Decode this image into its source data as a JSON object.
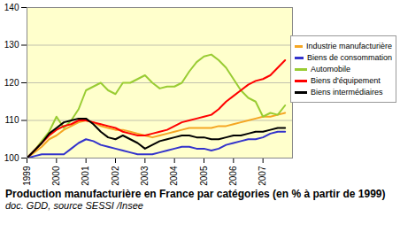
{
  "chart_data": {
    "type": "line",
    "title": "Production manufacturière en France par catégories (en % à partir de 1999)",
    "subtitle": "doc. GDD, source SESSI /Insee",
    "x": [
      1999,
      1999.25,
      1999.5,
      1999.75,
      2000,
      2000.25,
      2000.5,
      2000.75,
      2001,
      2001.25,
      2001.5,
      2001.75,
      2002,
      2002.25,
      2002.5,
      2002.75,
      2003,
      2003.25,
      2003.5,
      2003.75,
      2004,
      2004.25,
      2004.5,
      2004.75,
      2005,
      2005.25,
      2005.5,
      2005.75,
      2006,
      2006.25,
      2006.5,
      2006.75,
      2007,
      2007.25,
      2007.5,
      2007.75
    ],
    "series": [
      {
        "name": "Industrie manufacturière",
        "color": "#f5a623",
        "values": [
          100,
          101.5,
          103,
          105,
          106,
          107.5,
          108.5,
          109.5,
          110,
          109.5,
          108.5,
          108,
          107.5,
          107.5,
          107,
          106.5,
          106,
          105.5,
          106,
          106.5,
          107,
          107.5,
          108,
          108,
          108,
          108,
          108.5,
          108.5,
          109,
          109.5,
          110,
          110.5,
          111,
          111,
          111.5,
          112
        ]
      },
      {
        "name": "Biens de consommation",
        "color": "#3333cc",
        "values": [
          100,
          100.5,
          101,
          101,
          101,
          101,
          102.5,
          104,
          105,
          104.5,
          103.5,
          103,
          102.5,
          102,
          101.5,
          101,
          101,
          101,
          101.5,
          102,
          102.5,
          103,
          103,
          102.5,
          102.5,
          102,
          102.5,
          103.5,
          104,
          104.5,
          105,
          105,
          105.5,
          106.5,
          107,
          107
        ]
      },
      {
        "name": "Automobile",
        "color": "#99cc33",
        "values": [
          100,
          102,
          104.5,
          107,
          111,
          108,
          110,
          113,
          118,
          119,
          120,
          118,
          117,
          120,
          120,
          121,
          122,
          120,
          118.5,
          119,
          119,
          120,
          123,
          125.5,
          127,
          127.5,
          126,
          124,
          121,
          118,
          116,
          115,
          111,
          112,
          111.5,
          114
        ]
      },
      {
        "name": "Biens d'équipement",
        "color": "#ff0000",
        "values": [
          100,
          102,
          104,
          106,
          107.5,
          108.5,
          109,
          110,
          110,
          109.5,
          109,
          108.5,
          108,
          107,
          106.5,
          106,
          106,
          106.5,
          107,
          107.5,
          108.5,
          109.5,
          110,
          110.5,
          111,
          111.5,
          113,
          115,
          116.5,
          118,
          119.5,
          120.5,
          121,
          122,
          124,
          126
        ]
      },
      {
        "name": "Biens intermédiaires",
        "color": "#000000",
        "values": [
          100,
          102,
          104,
          106.5,
          108,
          109.5,
          110,
          110.5,
          110.5,
          109,
          107,
          105.5,
          105,
          106,
          105,
          104,
          102.5,
          103.5,
          104.5,
          105,
          105.5,
          106,
          106,
          105.5,
          105.5,
          105,
          105,
          105.5,
          106,
          106,
          106.5,
          107,
          107,
          107.5,
          108,
          108
        ]
      }
    ],
    "xlim": [
      1999,
      2008
    ],
    "xticks": [
      1999,
      2000,
      2001,
      2002,
      2003,
      2004,
      2005,
      2006,
      2007
    ],
    "ylim": [
      100,
      140
    ],
    "yticks": [
      100,
      110,
      120,
      130,
      140
    ],
    "grid": true,
    "legend": "right"
  }
}
